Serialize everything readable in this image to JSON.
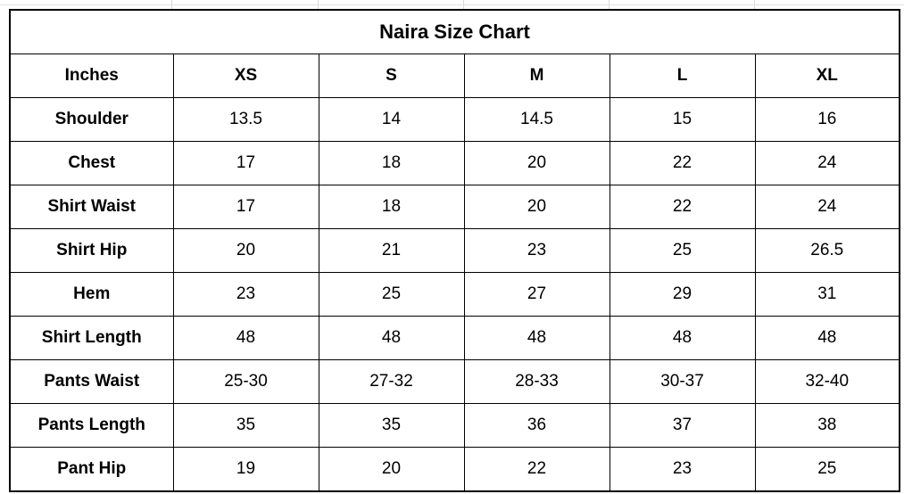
{
  "title": "Naira Size Chart",
  "header": {
    "unit_label": "Inches",
    "sizes": [
      "XS",
      "S",
      "M",
      "L",
      "XL"
    ]
  },
  "rows": [
    {
      "label": "Shoulder",
      "values": [
        "13.5",
        "14",
        "14.5",
        "15",
        "16"
      ]
    },
    {
      "label": "Chest",
      "values": [
        "17",
        "18",
        "20",
        "22",
        "24"
      ]
    },
    {
      "label": "Shirt Waist",
      "values": [
        "17",
        "18",
        "20",
        "22",
        "24"
      ]
    },
    {
      "label": "Shirt Hip",
      "values": [
        "20",
        "21",
        "23",
        "25",
        "26.5"
      ]
    },
    {
      "label": "Hem",
      "values": [
        "23",
        "25",
        "27",
        "29",
        "31"
      ]
    },
    {
      "label": "Shirt Length",
      "values": [
        "48",
        "48",
        "48",
        "48",
        "48"
      ]
    },
    {
      "label": "Pants Waist",
      "values": [
        "25-30",
        "27-32",
        "28-33",
        "30-37",
        "32-40"
      ]
    },
    {
      "label": "Pants Length",
      "values": [
        "35",
        "35",
        "36",
        "37",
        "38"
      ]
    },
    {
      "label": "Pant Hip",
      "values": [
        "19",
        "20",
        "22",
        "23",
        "25"
      ]
    }
  ]
}
